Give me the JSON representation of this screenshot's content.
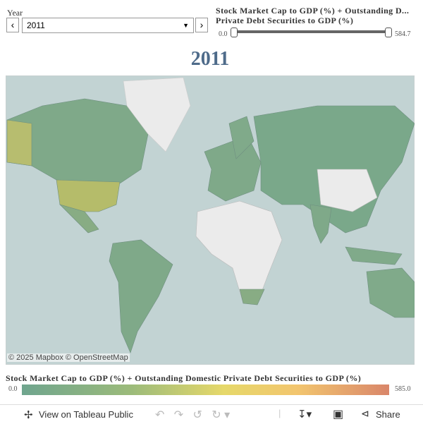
{
  "filter": {
    "label": "Year",
    "value": "2011"
  },
  "slider": {
    "title_line1": "Stock Market Cap to GDP (%) + Outstanding D...",
    "title_line2": "Private Debt Securities to GDP (%)",
    "min": "0.0",
    "max": "584.7"
  },
  "map": {
    "title": "2011",
    "attribution": [
      "© 2025 Mapbox",
      "© OpenStreetMap"
    ]
  },
  "legend": {
    "title": "Stock Market Cap to GDP (%) + Outstanding Domestic Private Debt Securities to GDP (%)",
    "min": "0.0",
    "max": "585.0"
  },
  "toolbar": {
    "view": "View on Tableau Public",
    "share": "Share"
  }
}
